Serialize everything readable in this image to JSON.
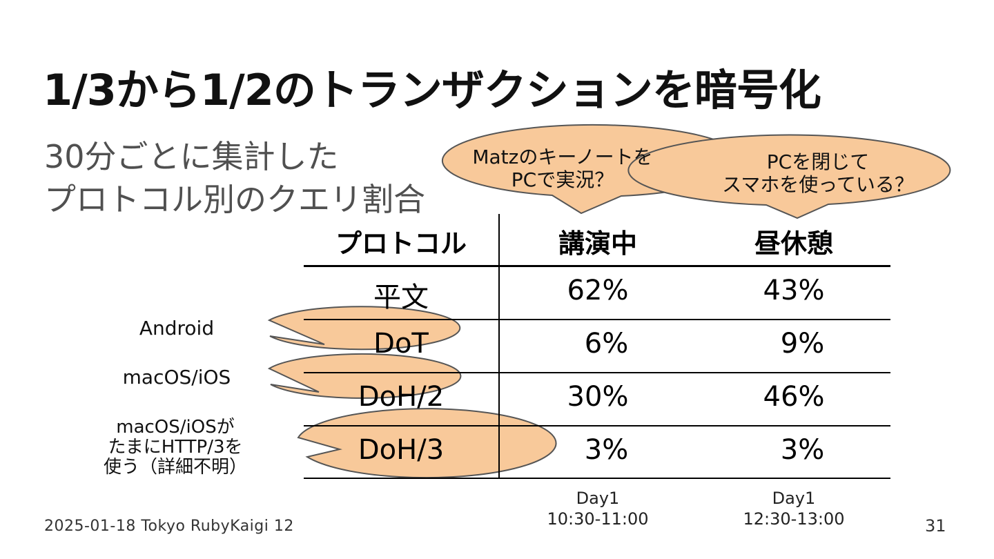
{
  "slide": {
    "title": "1/3から1/2のトランザクションを暗号化",
    "subtitle_lines": [
      "30分ごとに集計した",
      "プロトコル別のクエリ割合"
    ],
    "footer": "2025-01-18 Tokyo RubyKaigi 12",
    "page_number": "31"
  },
  "table": {
    "headers": [
      "プロトコル",
      "講演中",
      "昼休憩"
    ],
    "rows": [
      [
        "平文",
        "62%",
        "43%"
      ],
      [
        "DoT",
        "6%",
        "9%"
      ],
      [
        "DoH/2",
        "30%",
        "46%"
      ],
      [
        "DoH/3",
        "3%",
        "3%"
      ]
    ],
    "column_notes": [
      {
        "day": "Day1",
        "time": "10:30-11:00"
      },
      {
        "day": "Day1",
        "time": "12:30-13:00"
      }
    ]
  },
  "callouts": {
    "matz": [
      "Matzのキーノートを",
      "PCで実況？"
    ],
    "pc": [
      "PCを閉じて",
      "スマホを使っている？"
    ],
    "android": [
      "Android"
    ],
    "macos": [
      "macOS/iOS"
    ],
    "macos_http3": [
      "macOS/iOSが",
      "たまにHTTP/3を",
      "使う（詳細不明）"
    ]
  },
  "colors": {
    "bubble_fill": "#f8c99a",
    "bubble_stroke": "#555555"
  }
}
